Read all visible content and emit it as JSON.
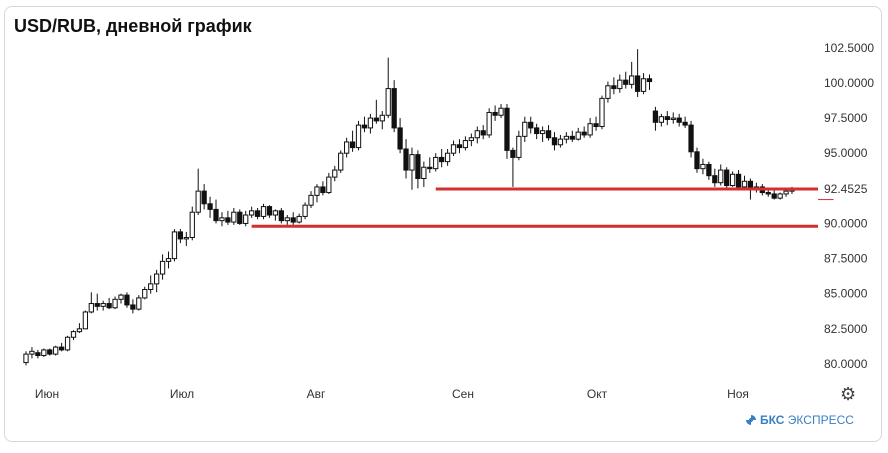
{
  "title": "USD/RUB, дневной график",
  "brand": {
    "strong": "БКС",
    "rest": " ЭКСПРЕСС",
    "icon": "bks-logo-icon"
  },
  "settings_icon": "gear-icon",
  "colors": {
    "support_line": "#d32f2f",
    "candle": "#111111",
    "grid": "#eeeeee"
  },
  "chart_data": {
    "type": "candlestick",
    "title": "USD/RUB, дневной график",
    "ylim": [
      79.0,
      103.2
    ],
    "y_ticks": [
      "102.5000",
      "100.0000",
      "97.5000",
      "95.0000",
      "92.4525",
      "90.0000",
      "87.5000",
      "85.0000",
      "82.5000",
      "80.0000"
    ],
    "highlighted_value": "92.4525",
    "x_ticks": [
      "Июн",
      "Июл",
      "Авг",
      "Сен",
      "Окт",
      "Ноя"
    ],
    "grid": false,
    "support_lines": [
      {
        "from": 69,
        "to": 150,
        "y": 92.4525
      },
      {
        "from": 38,
        "to": 150,
        "y": 89.8
      }
    ],
    "support_line_short": {
      "from": 136,
      "to": 150,
      "y": 91.7
    },
    "candles": [
      [
        80.1,
        80.9,
        79.9,
        80.7
      ],
      [
        80.7,
        81.2,
        80.4,
        80.9
      ],
      [
        80.8,
        81.0,
        80.4,
        80.6
      ],
      [
        80.6,
        81.1,
        80.5,
        81.0
      ],
      [
        81.0,
        81.1,
        80.6,
        80.7
      ],
      [
        80.7,
        81.3,
        80.6,
        81.2
      ],
      [
        81.2,
        81.5,
        80.9,
        81.0
      ],
      [
        81.0,
        82.0,
        80.9,
        81.9
      ],
      [
        81.9,
        82.4,
        81.7,
        82.3
      ],
      [
        82.3,
        82.9,
        82.2,
        82.5
      ],
      [
        82.5,
        83.8,
        82.5,
        83.7
      ],
      [
        83.7,
        85.1,
        83.6,
        84.3
      ],
      [
        84.3,
        85.0,
        83.8,
        84.1
      ],
      [
        84.1,
        84.5,
        83.8,
        84.3
      ],
      [
        84.3,
        84.7,
        83.9,
        84.0
      ],
      [
        84.0,
        84.8,
        83.9,
        84.6
      ],
      [
        84.6,
        85.0,
        84.3,
        84.9
      ],
      [
        84.9,
        85.1,
        84.0,
        84.2
      ],
      [
        84.2,
        84.6,
        83.6,
        83.9
      ],
      [
        83.9,
        84.9,
        83.8,
        84.7
      ],
      [
        84.7,
        85.5,
        84.6,
        85.3
      ],
      [
        85.3,
        86.3,
        85.0,
        85.7
      ],
      [
        85.7,
        86.7,
        85.1,
        86.4
      ],
      [
        86.4,
        87.8,
        86.0,
        87.3
      ],
      [
        87.3,
        88.0,
        86.8,
        87.5
      ],
      [
        87.5,
        89.6,
        87.3,
        89.4
      ],
      [
        89.4,
        89.6,
        88.6,
        88.9
      ],
      [
        88.9,
        89.4,
        88.4,
        89.0
      ],
      [
        89.0,
        91.2,
        88.8,
        90.8
      ],
      [
        90.8,
        93.9,
        90.6,
        92.3
      ],
      [
        92.3,
        92.8,
        91.0,
        91.4
      ],
      [
        91.4,
        91.9,
        90.4,
        91.0
      ],
      [
        91.0,
        91.7,
        90.0,
        90.2
      ],
      [
        90.2,
        90.8,
        89.8,
        90.4
      ],
      [
        90.4,
        90.9,
        89.9,
        90.1
      ],
      [
        90.1,
        91.1,
        89.9,
        90.8
      ],
      [
        90.8,
        91.0,
        89.9,
        90.0
      ],
      [
        90.0,
        90.9,
        89.8,
        90.6
      ],
      [
        90.6,
        91.2,
        90.4,
        90.9
      ],
      [
        90.9,
        91.1,
        90.3,
        90.5
      ],
      [
        90.5,
        91.4,
        90.3,
        91.2
      ],
      [
        91.2,
        91.3,
        90.4,
        90.6
      ],
      [
        90.6,
        91.0,
        90.2,
        90.9
      ],
      [
        90.9,
        91.1,
        90.0,
        90.2
      ],
      [
        90.2,
        90.6,
        89.9,
        90.4
      ],
      [
        90.4,
        90.8,
        89.9,
        90.1
      ],
      [
        90.1,
        90.7,
        90.0,
        90.5
      ],
      [
        90.5,
        91.5,
        90.3,
        91.3
      ],
      [
        91.3,
        92.3,
        91.1,
        92.0
      ],
      [
        92.0,
        92.8,
        91.5,
        92.6
      ],
      [
        92.6,
        93.0,
        92.0,
        92.2
      ],
      [
        92.2,
        93.6,
        92.1,
        93.3
      ],
      [
        93.3,
        94.1,
        93.0,
        93.8
      ],
      [
        93.8,
        95.2,
        93.6,
        95.0
      ],
      [
        95.0,
        96.1,
        94.7,
        95.8
      ],
      [
        95.8,
        96.6,
        95.1,
        95.4
      ],
      [
        95.4,
        97.3,
        95.2,
        97.0
      ],
      [
        97.0,
        97.6,
        96.5,
        96.8
      ],
      [
        96.8,
        97.8,
        96.4,
        97.5
      ],
      [
        97.5,
        98.8,
        97.1,
        97.3
      ],
      [
        97.3,
        98.0,
        96.7,
        97.7
      ],
      [
        97.7,
        101.8,
        97.5,
        99.6
      ],
      [
        99.6,
        100.2,
        96.5,
        96.8
      ],
      [
        96.8,
        97.5,
        95.0,
        95.3
      ],
      [
        95.3,
        96.0,
        93.2,
        93.8
      ],
      [
        93.8,
        95.4,
        92.4,
        94.9
      ],
      [
        94.9,
        95.2,
        92.5,
        93.2
      ],
      [
        93.2,
        94.4,
        92.6,
        94.0
      ],
      [
        94.0,
        94.7,
        93.6,
        93.9
      ],
      [
        93.9,
        95.0,
        93.7,
        94.7
      ],
      [
        94.7,
        95.3,
        94.0,
        94.4
      ],
      [
        94.4,
        95.3,
        94.1,
        95.0
      ],
      [
        95.0,
        95.9,
        94.8,
        95.6
      ],
      [
        95.6,
        96.0,
        95.0,
        95.4
      ],
      [
        95.4,
        96.2,
        95.2,
        95.9
      ],
      [
        95.9,
        96.4,
        95.5,
        96.1
      ],
      [
        96.1,
        96.9,
        95.7,
        96.6
      ],
      [
        96.6,
        97.0,
        96.0,
        96.3
      ],
      [
        96.3,
        98.2,
        96.1,
        97.9
      ],
      [
        97.9,
        98.4,
        97.3,
        97.7
      ],
      [
        97.7,
        98.5,
        97.5,
        98.2
      ],
      [
        98.2,
        98.5,
        94.6,
        95.2
      ],
      [
        95.2,
        95.4,
        92.6,
        94.7
      ],
      [
        94.7,
        96.6,
        94.5,
        96.2
      ],
      [
        96.2,
        97.6,
        95.8,
        97.2
      ],
      [
        97.2,
        97.6,
        96.4,
        96.8
      ],
      [
        96.8,
        97.1,
        96.0,
        96.4
      ],
      [
        96.4,
        96.9,
        95.8,
        96.6
      ],
      [
        96.6,
        97.0,
        95.9,
        96.1
      ],
      [
        96.1,
        96.5,
        95.2,
        95.6
      ],
      [
        95.6,
        96.3,
        95.4,
        96.0
      ],
      [
        96.0,
        96.5,
        95.7,
        96.2
      ],
      [
        96.2,
        96.6,
        95.8,
        96.0
      ],
      [
        96.0,
        96.8,
        95.9,
        96.5
      ],
      [
        96.5,
        96.9,
        96.1,
        96.3
      ],
      [
        96.3,
        97.5,
        96.1,
        97.1
      ],
      [
        97.1,
        97.6,
        96.6,
        96.9
      ],
      [
        96.9,
        99.1,
        96.7,
        98.9
      ],
      [
        98.9,
        100.1,
        98.6,
        99.8
      ],
      [
        99.8,
        100.4,
        99.2,
        99.6
      ],
      [
        99.6,
        100.6,
        99.3,
        100.2
      ],
      [
        100.2,
        100.8,
        99.6,
        99.9
      ],
      [
        99.9,
        101.5,
        99.6,
        100.5
      ],
      [
        100.5,
        102.4,
        99.0,
        99.4
      ],
      [
        99.4,
        100.7,
        99.2,
        100.3
      ],
      [
        100.3,
        100.6,
        99.5,
        100.1
      ],
      [
        98.0,
        98.3,
        96.6,
        97.2
      ],
      [
        97.2,
        97.8,
        96.9,
        97.6
      ],
      [
        97.6,
        98.0,
        97.0,
        97.4
      ],
      [
        97.4,
        97.9,
        97.1,
        97.5
      ],
      [
        97.5,
        97.8,
        96.9,
        97.2
      ],
      [
        97.2,
        97.6,
        96.8,
        97.0
      ],
      [
        97.0,
        97.3,
        94.7,
        95.1
      ],
      [
        95.1,
        95.4,
        93.6,
        93.9
      ],
      [
        93.9,
        94.6,
        93.5,
        94.2
      ],
      [
        94.2,
        94.4,
        93.1,
        93.4
      ],
      [
        93.4,
        93.9,
        92.6,
        92.9
      ],
      [
        92.9,
        94.2,
        92.7,
        93.8
      ],
      [
        93.8,
        94.0,
        92.5,
        92.7
      ],
      [
        92.7,
        93.7,
        92.6,
        93.5
      ],
      [
        93.5,
        93.8,
        92.5,
        92.6
      ],
      [
        92.6,
        93.4,
        92.4,
        93.0
      ],
      [
        93.0,
        93.2,
        91.7,
        92.5
      ],
      [
        92.5,
        92.9,
        92.2,
        92.6
      ],
      [
        92.6,
        92.8,
        92.0,
        92.2
      ],
      [
        92.2,
        92.5,
        91.9,
        92.1
      ],
      [
        92.1,
        92.4,
        91.7,
        91.8
      ],
      [
        91.8,
        92.2,
        91.7,
        92.1
      ],
      [
        92.1,
        92.4,
        91.9,
        92.3
      ],
      [
        92.3,
        92.6,
        92.1,
        92.5
      ]
    ]
  }
}
